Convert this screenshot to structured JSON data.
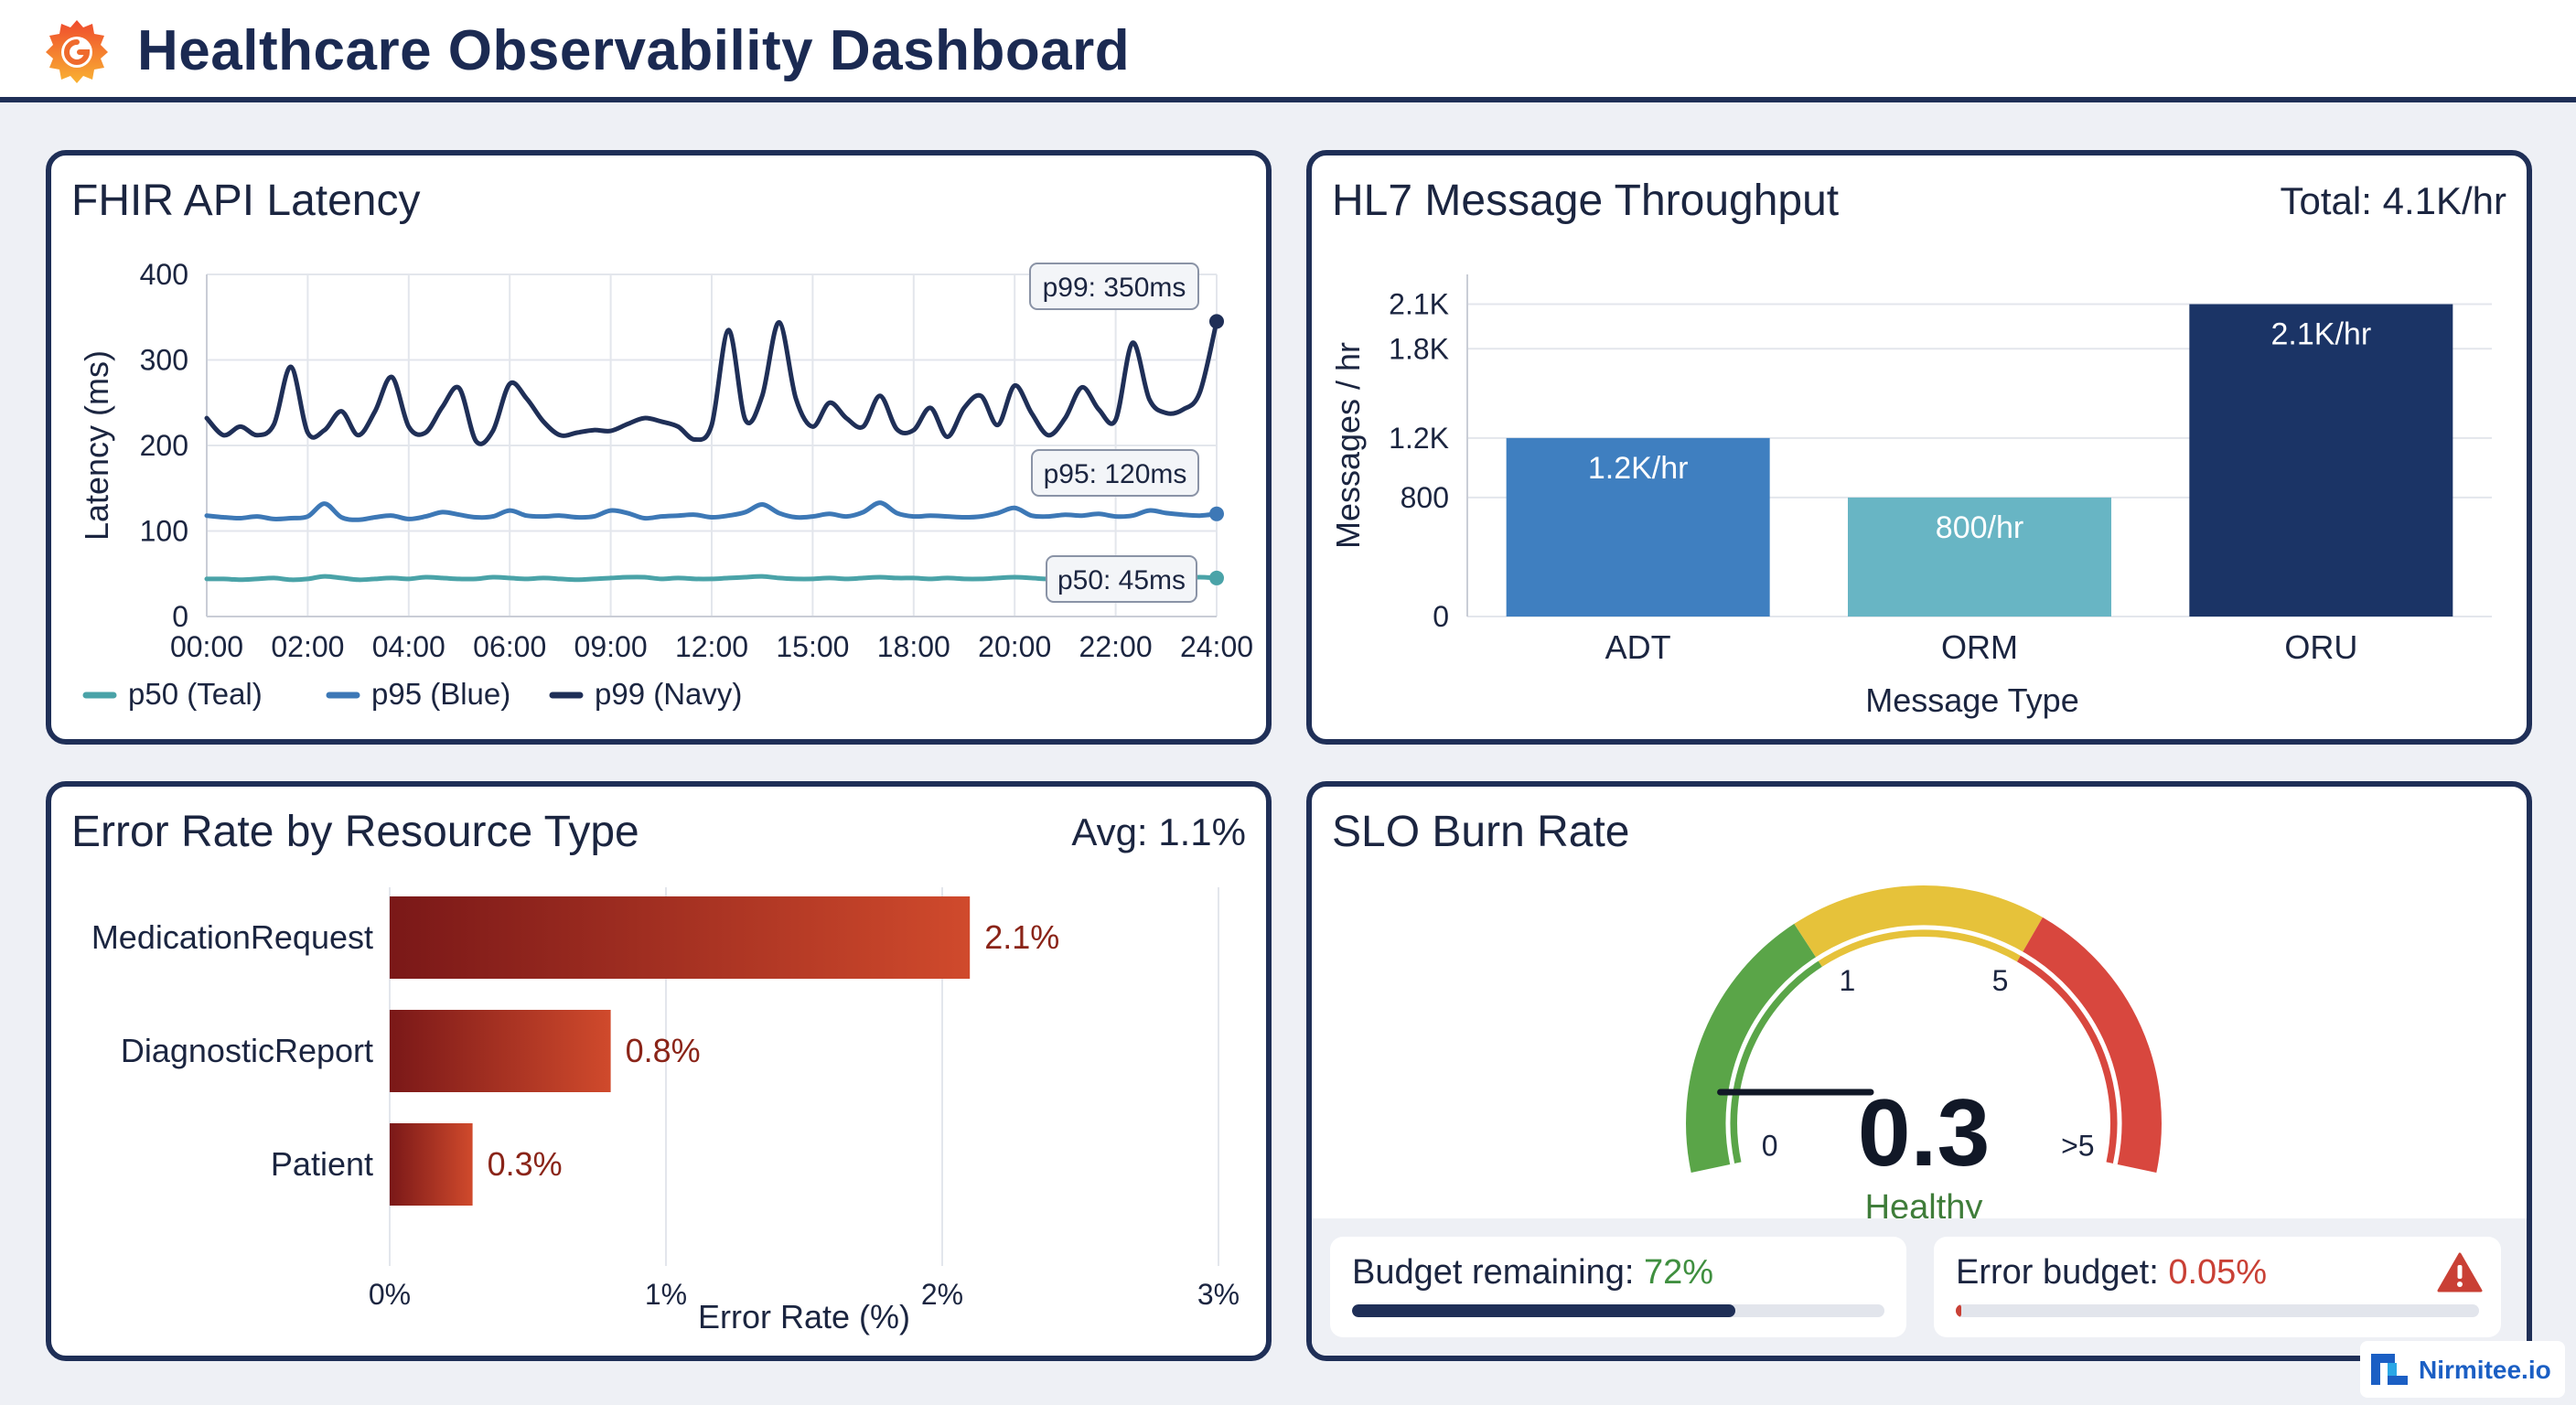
{
  "app": {
    "title": "Healthcare Observability Dashboard",
    "logo_icon": "grafana-logo-icon"
  },
  "colors": {
    "navy": "#1f2f57",
    "teal": "#4aa3a8",
    "blue": "#3d78b6",
    "adt": "#3f7fc0",
    "orm": "#68b5c4",
    "oru": "#1b3466",
    "gauge_green": "#5aa548",
    "gauge_yellow": "#e6c23a",
    "gauge_red": "#d8473e"
  },
  "latency_panel": {
    "title": "FHIR API Latency",
    "chart_data": {
      "type": "line",
      "title": "FHIR API Latency",
      "ylabel": "Latency (ms)",
      "ylim": [
        0,
        400
      ],
      "yticks": [
        "0",
        "100",
        "200",
        "300",
        "400"
      ],
      "xticks": [
        "00:00",
        "02:00",
        "04:00",
        "06:00",
        "09:00",
        "12:00",
        "15:00",
        "18:00",
        "20:00",
        "22:00",
        "24:00"
      ],
      "callouts": [
        "p99: 350ms",
        "p95: 120ms",
        "p50: 45ms"
      ],
      "series": [
        {
          "name": "p50 (Teal)",
          "key": "p50",
          "values": [
            44,
            44,
            43,
            44,
            45,
            43,
            44,
            47,
            45,
            43,
            44,
            45,
            44,
            46,
            45,
            44,
            44,
            46,
            45,
            44,
            45,
            44,
            43,
            44,
            45,
            46,
            46,
            44,
            45,
            44,
            44,
            45,
            46,
            47,
            45,
            44,
            44,
            45,
            44,
            45,
            46,
            45,
            45,
            44,
            45,
            44,
            44,
            45,
            46,
            45,
            44,
            45,
            45,
            45,
            44,
            45,
            45,
            44,
            45,
            46,
            45
          ]
        },
        {
          "name": "p95 (Blue)",
          "key": "p95",
          "values": [
            118,
            116,
            115,
            117,
            114,
            115,
            117,
            132,
            116,
            113,
            116,
            118,
            114,
            117,
            122,
            119,
            116,
            117,
            124,
            118,
            117,
            118,
            116,
            117,
            124,
            121,
            115,
            117,
            118,
            119,
            116,
            118,
            122,
            131,
            121,
            116,
            117,
            120,
            117,
            122,
            133,
            121,
            117,
            118,
            117,
            116,
            117,
            121,
            127,
            118,
            117,
            119,
            118,
            120,
            117,
            118,
            124,
            121,
            119,
            118,
            120
          ]
        },
        {
          "name": "p99 (Navy)",
          "key": "p99",
          "values": [
            232,
            212,
            222,
            212,
            225,
            292,
            215,
            218,
            240,
            212,
            240,
            280,
            222,
            215,
            245,
            267,
            205,
            217,
            272,
            255,
            228,
            212,
            215,
            218,
            217,
            225,
            232,
            228,
            222,
            207,
            224,
            335,
            230,
            258,
            344,
            255,
            222,
            250,
            232,
            222,
            258,
            219,
            218,
            244,
            210,
            244,
            258,
            224,
            270,
            238,
            212,
            232,
            268,
            242,
            230,
            320,
            254,
            238,
            242,
            262,
            345
          ]
        }
      ]
    },
    "legend": [
      "p50 (Teal)",
      "p95 (Blue)",
      "p99 (Navy)"
    ]
  },
  "throughput_panel": {
    "title": "HL7 Message Throughput",
    "total": "Total: 4.1K/hr",
    "chart_data": {
      "type": "bar",
      "title": "HL7 Message Throughput",
      "xlabel": "Message Type",
      "ylabel": "Messages / hr",
      "categories": [
        "ADT",
        "ORM",
        "ORU"
      ],
      "values": [
        1200,
        800,
        2100
      ],
      "value_labels": [
        "1.2K/hr",
        "800/hr",
        "2.1K/hr"
      ],
      "yticks": [
        "0",
        "800",
        "1.2K",
        "1.8K",
        "2.1K"
      ],
      "ytick_values": [
        0,
        800,
        1200,
        1800,
        2100
      ],
      "ylim": [
        0,
        2300
      ]
    }
  },
  "error_panel": {
    "title": "Error Rate by Resource Type",
    "avg": "Avg: 1.1%",
    "chart_data": {
      "type": "bar",
      "orientation": "horizontal",
      "title": "Error Rate by Resource Type",
      "xlabel": "Error Rate (%)",
      "categories": [
        "MedicationRequest",
        "DiagnosticReport",
        "Patient"
      ],
      "values": [
        2.1,
        0.8,
        0.3
      ],
      "value_labels": [
        "2.1%",
        "0.8%",
        "0.3%"
      ],
      "xticks": [
        "0%",
        "1%",
        "2%",
        "3%"
      ],
      "xlim": [
        0,
        3
      ]
    }
  },
  "slo_panel": {
    "title": "SLO Burn Rate",
    "gauge": {
      "value": 0.3,
      "value_label": "0.3",
      "status": "Healthy",
      "labels": {
        "zero": "0",
        "one": "1",
        "five": "5",
        "max": ">5"
      }
    },
    "budget_remaining": {
      "label": "Budget remaining: ",
      "value": "72%",
      "fraction": 0.72
    },
    "error_budget": {
      "label": "Error budget: ",
      "value": "0.05%",
      "fraction": 0.0005,
      "icon": "warning-triangle-icon"
    }
  },
  "brand": {
    "name": "Nirmitee.io",
    "icon": "nirmitee-logo-icon"
  }
}
